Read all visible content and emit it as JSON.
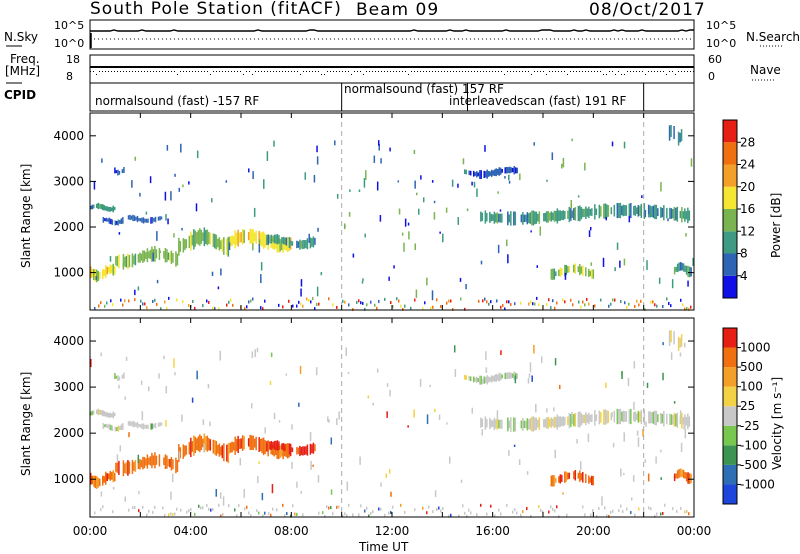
{
  "header": {
    "title": "South Pole Station (fitACF)",
    "beam": "Beam 09",
    "date": "08/Oct/2017"
  },
  "strip_panels": {
    "nsky_label": "N.Sky",
    "nsearch_label": "N.Search",
    "freq_label_1": "Freq.",
    "freq_label_2": "[MHz]",
    "nave_label": "Nave",
    "cpid_label": "CPID",
    "nsky_ticks": [
      "10^5",
      "10^0"
    ],
    "nsearch_ticks": [
      "10^5",
      "10^0"
    ],
    "freq_ticks": [
      "18",
      "8"
    ],
    "nave_ticks": [
      "60",
      "0"
    ],
    "cpid_segments": [
      {
        "start": "00:00",
        "end": "10:00",
        "text": "normalsound (fast) -157 RF"
      },
      {
        "start": "10:00",
        "end": "15:00",
        "text": "normalsound (fast) 157 RF"
      },
      {
        "start": "15:00",
        "end": "22:00",
        "text": "interleavedscan (fast) 191 RF"
      }
    ]
  },
  "chart_data": [
    {
      "type": "heatmap",
      "name": "power",
      "ylabel": "Slant Range [km]",
      "xlabel": "",
      "ylim": [
        180,
        4500
      ],
      "xlim_hours": [
        0,
        24
      ],
      "yticks": [
        "1000",
        "2000",
        "3000",
        "4000"
      ],
      "colorbar": {
        "label": "Power [dB]",
        "ticks": [
          "4",
          "8",
          "12",
          "16",
          "20",
          "24",
          "28"
        ],
        "colors": [
          "#1010e6",
          "#2e64b4",
          "#3e9a82",
          "#7ab450",
          "#f4e632",
          "#f4a028",
          "#f07010",
          "#e61e14"
        ]
      },
      "regions": [
        {
          "t0": 0.0,
          "t1": 1.0,
          "r0": 2350,
          "r1": 2500,
          "level": 2
        },
        {
          "t0": 0.5,
          "t1": 1.3,
          "r0": 2050,
          "r1": 2200,
          "level": 1
        },
        {
          "t0": 0.9,
          "t1": 1.4,
          "r0": 3150,
          "r1": 3300,
          "level": 1
        },
        {
          "t0": 0.0,
          "t1": 1.0,
          "r0": 850,
          "r1": 1150,
          "level": 4
        },
        {
          "t0": 1.0,
          "t1": 3.5,
          "r0": 1150,
          "r1": 1500,
          "level": 3
        },
        {
          "t0": 3.5,
          "t1": 5.5,
          "r0": 1450,
          "r1": 1900,
          "level": 3
        },
        {
          "t0": 5.5,
          "t1": 8.0,
          "r0": 1500,
          "r1": 1900,
          "level": 4
        },
        {
          "t0": 7.0,
          "t1": 9.0,
          "r0": 1550,
          "r1": 1800,
          "level": 2
        },
        {
          "t0": 1.5,
          "t1": 3.0,
          "r0": 2100,
          "r1": 2250,
          "level": 1
        },
        {
          "t0": 14.8,
          "t1": 17.0,
          "r0": 3100,
          "r1": 3300,
          "level": 1
        },
        {
          "t0": 15.5,
          "t1": 23.8,
          "r0": 2100,
          "r1": 2450,
          "level": 2
        },
        {
          "t0": 18.3,
          "t1": 20.0,
          "r0": 900,
          "r1": 1150,
          "level": 3
        },
        {
          "t0": 23.2,
          "t1": 23.9,
          "r0": 950,
          "r1": 1200,
          "level": 2
        },
        {
          "t0": 23.0,
          "t1": 23.5,
          "r0": 3850,
          "r1": 4200,
          "level": 1
        }
      ]
    },
    {
      "type": "heatmap",
      "name": "velocity",
      "ylabel": "Slant Range [km]",
      "xlabel": "Time UT",
      "ylim": [
        180,
        4500
      ],
      "xlim_hours": [
        0,
        24
      ],
      "yticks": [
        "1000",
        "2000",
        "3000",
        "4000"
      ],
      "xticks": [
        "00:00",
        "04:00",
        "08:00",
        "12:00",
        "16:00",
        "20:00",
        "00:00"
      ],
      "colorbar": {
        "label": "Velocity [m s⁻¹]",
        "ticks": [
          "1000",
          "500",
          "100",
          "25",
          "-25",
          "-100",
          "-500",
          "-1000"
        ],
        "colors": [
          "#1e46dc",
          "#2e6eb4",
          "#3c9450",
          "#78c850",
          "#c8c8c8",
          "#f4d246",
          "#f4a028",
          "#f07010",
          "#e61e14"
        ]
      },
      "regions": [
        {
          "t0": 0.0,
          "t1": 1.0,
          "r0": 2350,
          "r1": 2500,
          "level": 4
        },
        {
          "t0": 0.5,
          "t1": 1.3,
          "r0": 2050,
          "r1": 2200,
          "level": 4
        },
        {
          "t0": 0.9,
          "t1": 1.4,
          "r0": 3150,
          "r1": 3300,
          "level": 4
        },
        {
          "t0": 0.0,
          "t1": 1.0,
          "r0": 850,
          "r1": 1150,
          "level": 7
        },
        {
          "t0": 1.0,
          "t1": 3.5,
          "r0": 1150,
          "r1": 1500,
          "level": 7
        },
        {
          "t0": 3.5,
          "t1": 5.5,
          "r0": 1450,
          "r1": 1900,
          "level": 7
        },
        {
          "t0": 5.5,
          "t1": 8.0,
          "r0": 1500,
          "r1": 1900,
          "level": 7
        },
        {
          "t0": 7.0,
          "t1": 9.0,
          "r0": 1550,
          "r1": 1800,
          "level": 8
        },
        {
          "t0": 1.5,
          "t1": 3.0,
          "r0": 2100,
          "r1": 2250,
          "level": 4
        },
        {
          "t0": 14.8,
          "t1": 17.0,
          "r0": 3100,
          "r1": 3300,
          "level": 4
        },
        {
          "t0": 15.5,
          "t1": 23.8,
          "r0": 2100,
          "r1": 2450,
          "level": 4
        },
        {
          "t0": 18.3,
          "t1": 20.0,
          "r0": 900,
          "r1": 1150,
          "level": 7
        },
        {
          "t0": 23.2,
          "t1": 23.9,
          "r0": 950,
          "r1": 1200,
          "level": 7
        },
        {
          "t0": 23.0,
          "t1": 23.5,
          "r0": 3850,
          "r1": 4200,
          "level": 4
        }
      ]
    }
  ]
}
